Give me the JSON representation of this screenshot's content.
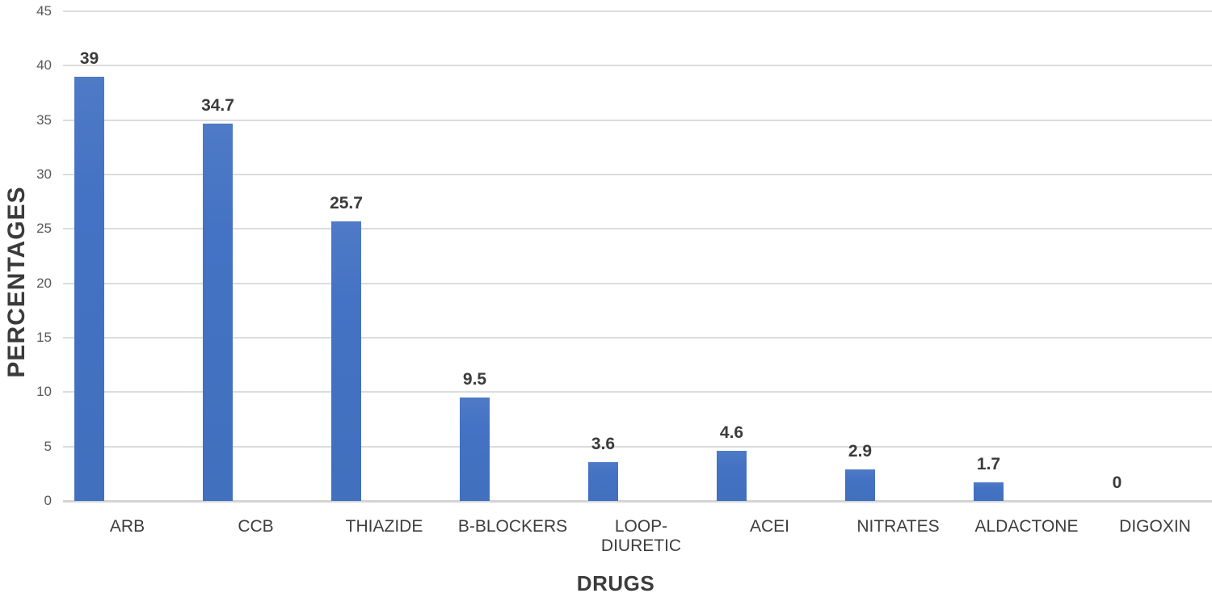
{
  "chart_data": {
    "type": "bar",
    "title": "",
    "categories": [
      "ARB",
      "CCB",
      "THIAZIDE",
      "B-BLOCKERS",
      "LOOP-DIURETIC",
      "ACEI",
      "NITRATES",
      "ALDACTONE",
      "DIGOXIN"
    ],
    "values": [
      39,
      34.7,
      25.7,
      9.5,
      3.6,
      4.6,
      2.9,
      1.7,
      0
    ],
    "value_labels": [
      "39",
      "34.7",
      "25.7",
      "9.5",
      "3.6",
      "4.6",
      "2.9",
      "1.7",
      "0"
    ],
    "xlabel": "DRUGS",
    "ylabel": "PERCENTAGES",
    "ylim": [
      0,
      45
    ],
    "ytick_interval": 5,
    "ytick_labels": [
      "0",
      "5",
      "10",
      "15",
      "20",
      "25",
      "30",
      "35",
      "40",
      "45"
    ],
    "grid": true,
    "legend": "none",
    "colors": {
      "bar": "#4472c4",
      "gridline": "#dcdcdc",
      "axis_line": "#d4d4d4",
      "tick_text": "#595959",
      "label_text": "#3b3b3b"
    }
  }
}
